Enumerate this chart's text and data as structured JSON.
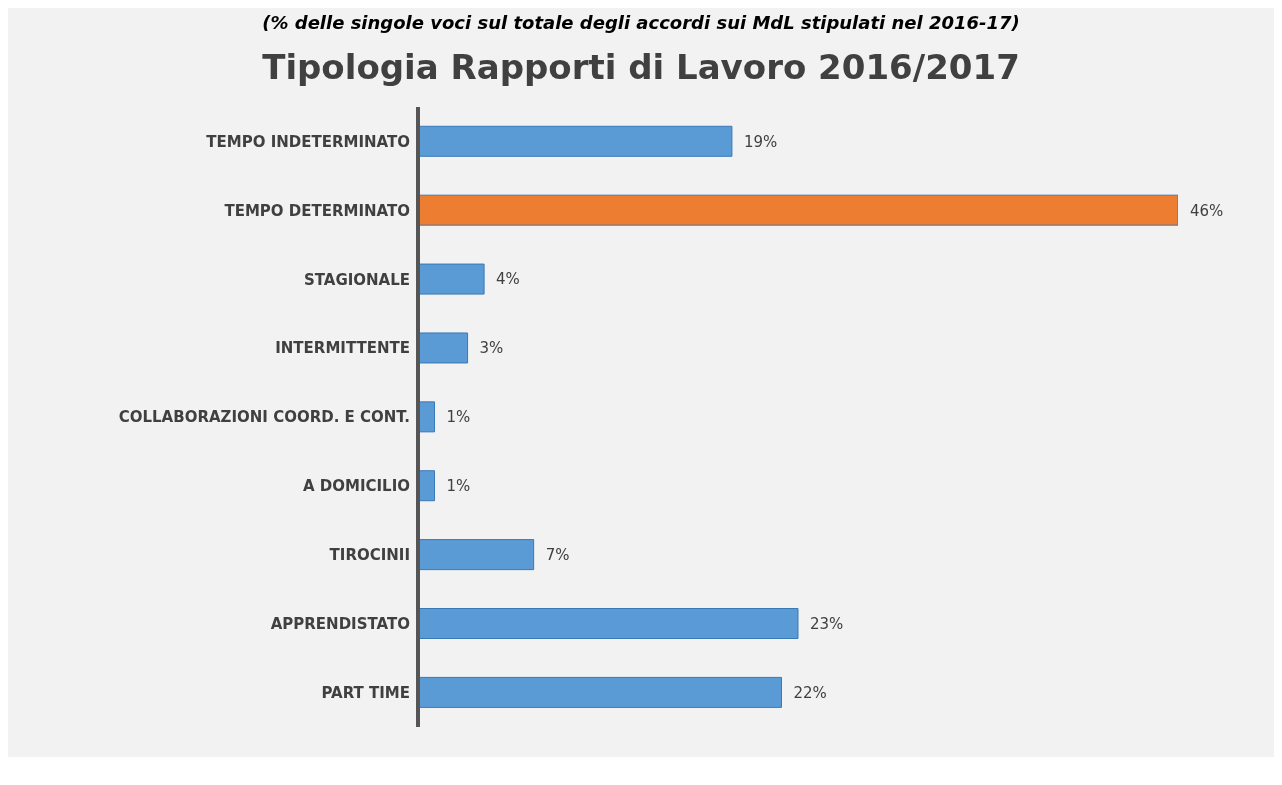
{
  "chart_data": {
    "type": "bar",
    "orientation": "horizontal",
    "subtitle": "(% delle singole voci sul totale degli accordi sui MdL stipulati nel 2016-17)",
    "title": "Tipologia Rapporti di Lavoro 2016/2017",
    "categories": [
      "TEMPO INDETERMINATO",
      "TEMPO DETERMINATO",
      "STAGIONALE",
      "INTERMITTENTE",
      "COLLABORAZIONI  COORD. E CONT.",
      "A DOMICILIO",
      "TIROCINII",
      "APPRENDISTATO",
      "PART TIME"
    ],
    "values": [
      19,
      46,
      4,
      3,
      1,
      1,
      7,
      23,
      22
    ],
    "value_labels": [
      "19%",
      "46%",
      "4%",
      "3%",
      "1%",
      "1%",
      "7%",
      "23%",
      "22%"
    ],
    "colors": [
      "#5b9bd5",
      "#ed7d31",
      "#5b9bd5",
      "#5b9bd5",
      "#5b9bd5",
      "#5b9bd5",
      "#5b9bd5",
      "#5b9bd5",
      "#5b9bd5"
    ],
    "tick_labels": "y"
  }
}
